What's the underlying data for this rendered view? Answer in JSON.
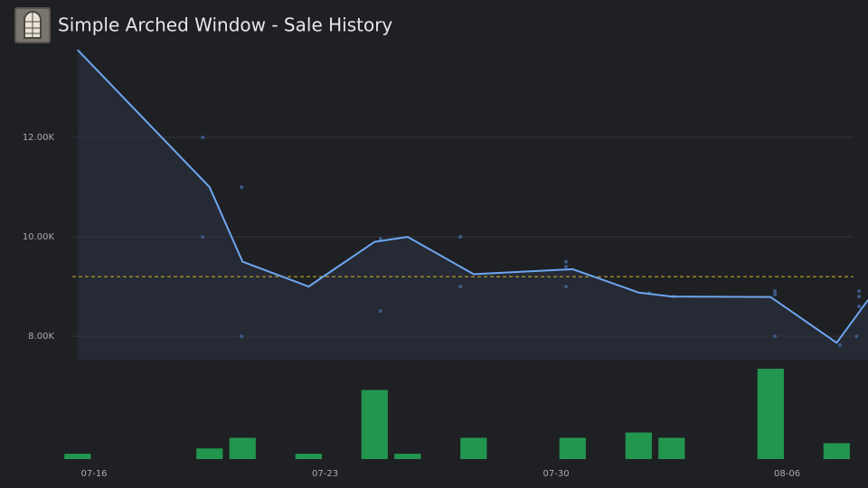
{
  "chart_data": [
    {
      "type": "line",
      "title": "Simple Arched Window - Sale History",
      "x": [
        15.5,
        19.5,
        20.5,
        22.5,
        24.5,
        25.5,
        27.5,
        30.5,
        32.5,
        33.5,
        36.5,
        38.5,
        39.45
      ],
      "values": [
        13760,
        11000,
        9500,
        9000,
        9900,
        10000,
        9250,
        9350,
        8880,
        8800,
        8790,
        7870,
        8730
      ],
      "color": "#6ea6f0",
      "area": true,
      "scatter": {
        "x": [
          19.29,
          19.29,
          20.47,
          20.47,
          24.68,
          24.68,
          27.1,
          27.1,
          30.3,
          30.3,
          30.3,
          32.82,
          33.56,
          36.63,
          36.63,
          36.63,
          38.6,
          39.1,
          39.18,
          39.18,
          39.18
        ],
        "values": [
          12000,
          10000,
          11000,
          8000,
          9960,
          8510,
          10000,
          9000,
          9500,
          9400,
          9000,
          8870,
          8800,
          8910,
          8840,
          8000,
          7820,
          8000,
          8910,
          8800,
          8600
        ],
        "color": "#3d5a85"
      },
      "reference": {
        "value": 9200,
        "color": "#d4b62c",
        "dashed": true
      },
      "xlim": [
        13.15,
        39.45
      ],
      "ylim": [
        7530,
        14000
      ],
      "yticks": [
        {
          "value": 8000,
          "label": "8.00K"
        },
        {
          "value": 10000,
          "label": "10.00K"
        },
        {
          "value": 12000,
          "label": "12.00K"
        }
      ],
      "grid": true
    },
    {
      "type": "bar",
      "x": [
        15.5,
        19.5,
        20.5,
        22.5,
        24.5,
        25.5,
        27.5,
        30.5,
        32.5,
        33.5,
        36.5,
        38.5
      ],
      "values": [
        1,
        2,
        4,
        1,
        13,
        1,
        4,
        4,
        5,
        4,
        17,
        3
      ],
      "color": "#22964f",
      "xlim": [
        13.15,
        39.45
      ],
      "ylim": [
        0,
        17
      ],
      "xticks": [
        {
          "value": 16,
          "label": "07-16"
        },
        {
          "value": 23,
          "label": "07-23"
        },
        {
          "value": 30,
          "label": "07-30"
        },
        {
          "value": 37,
          "label": "08-06"
        }
      ]
    }
  ]
}
